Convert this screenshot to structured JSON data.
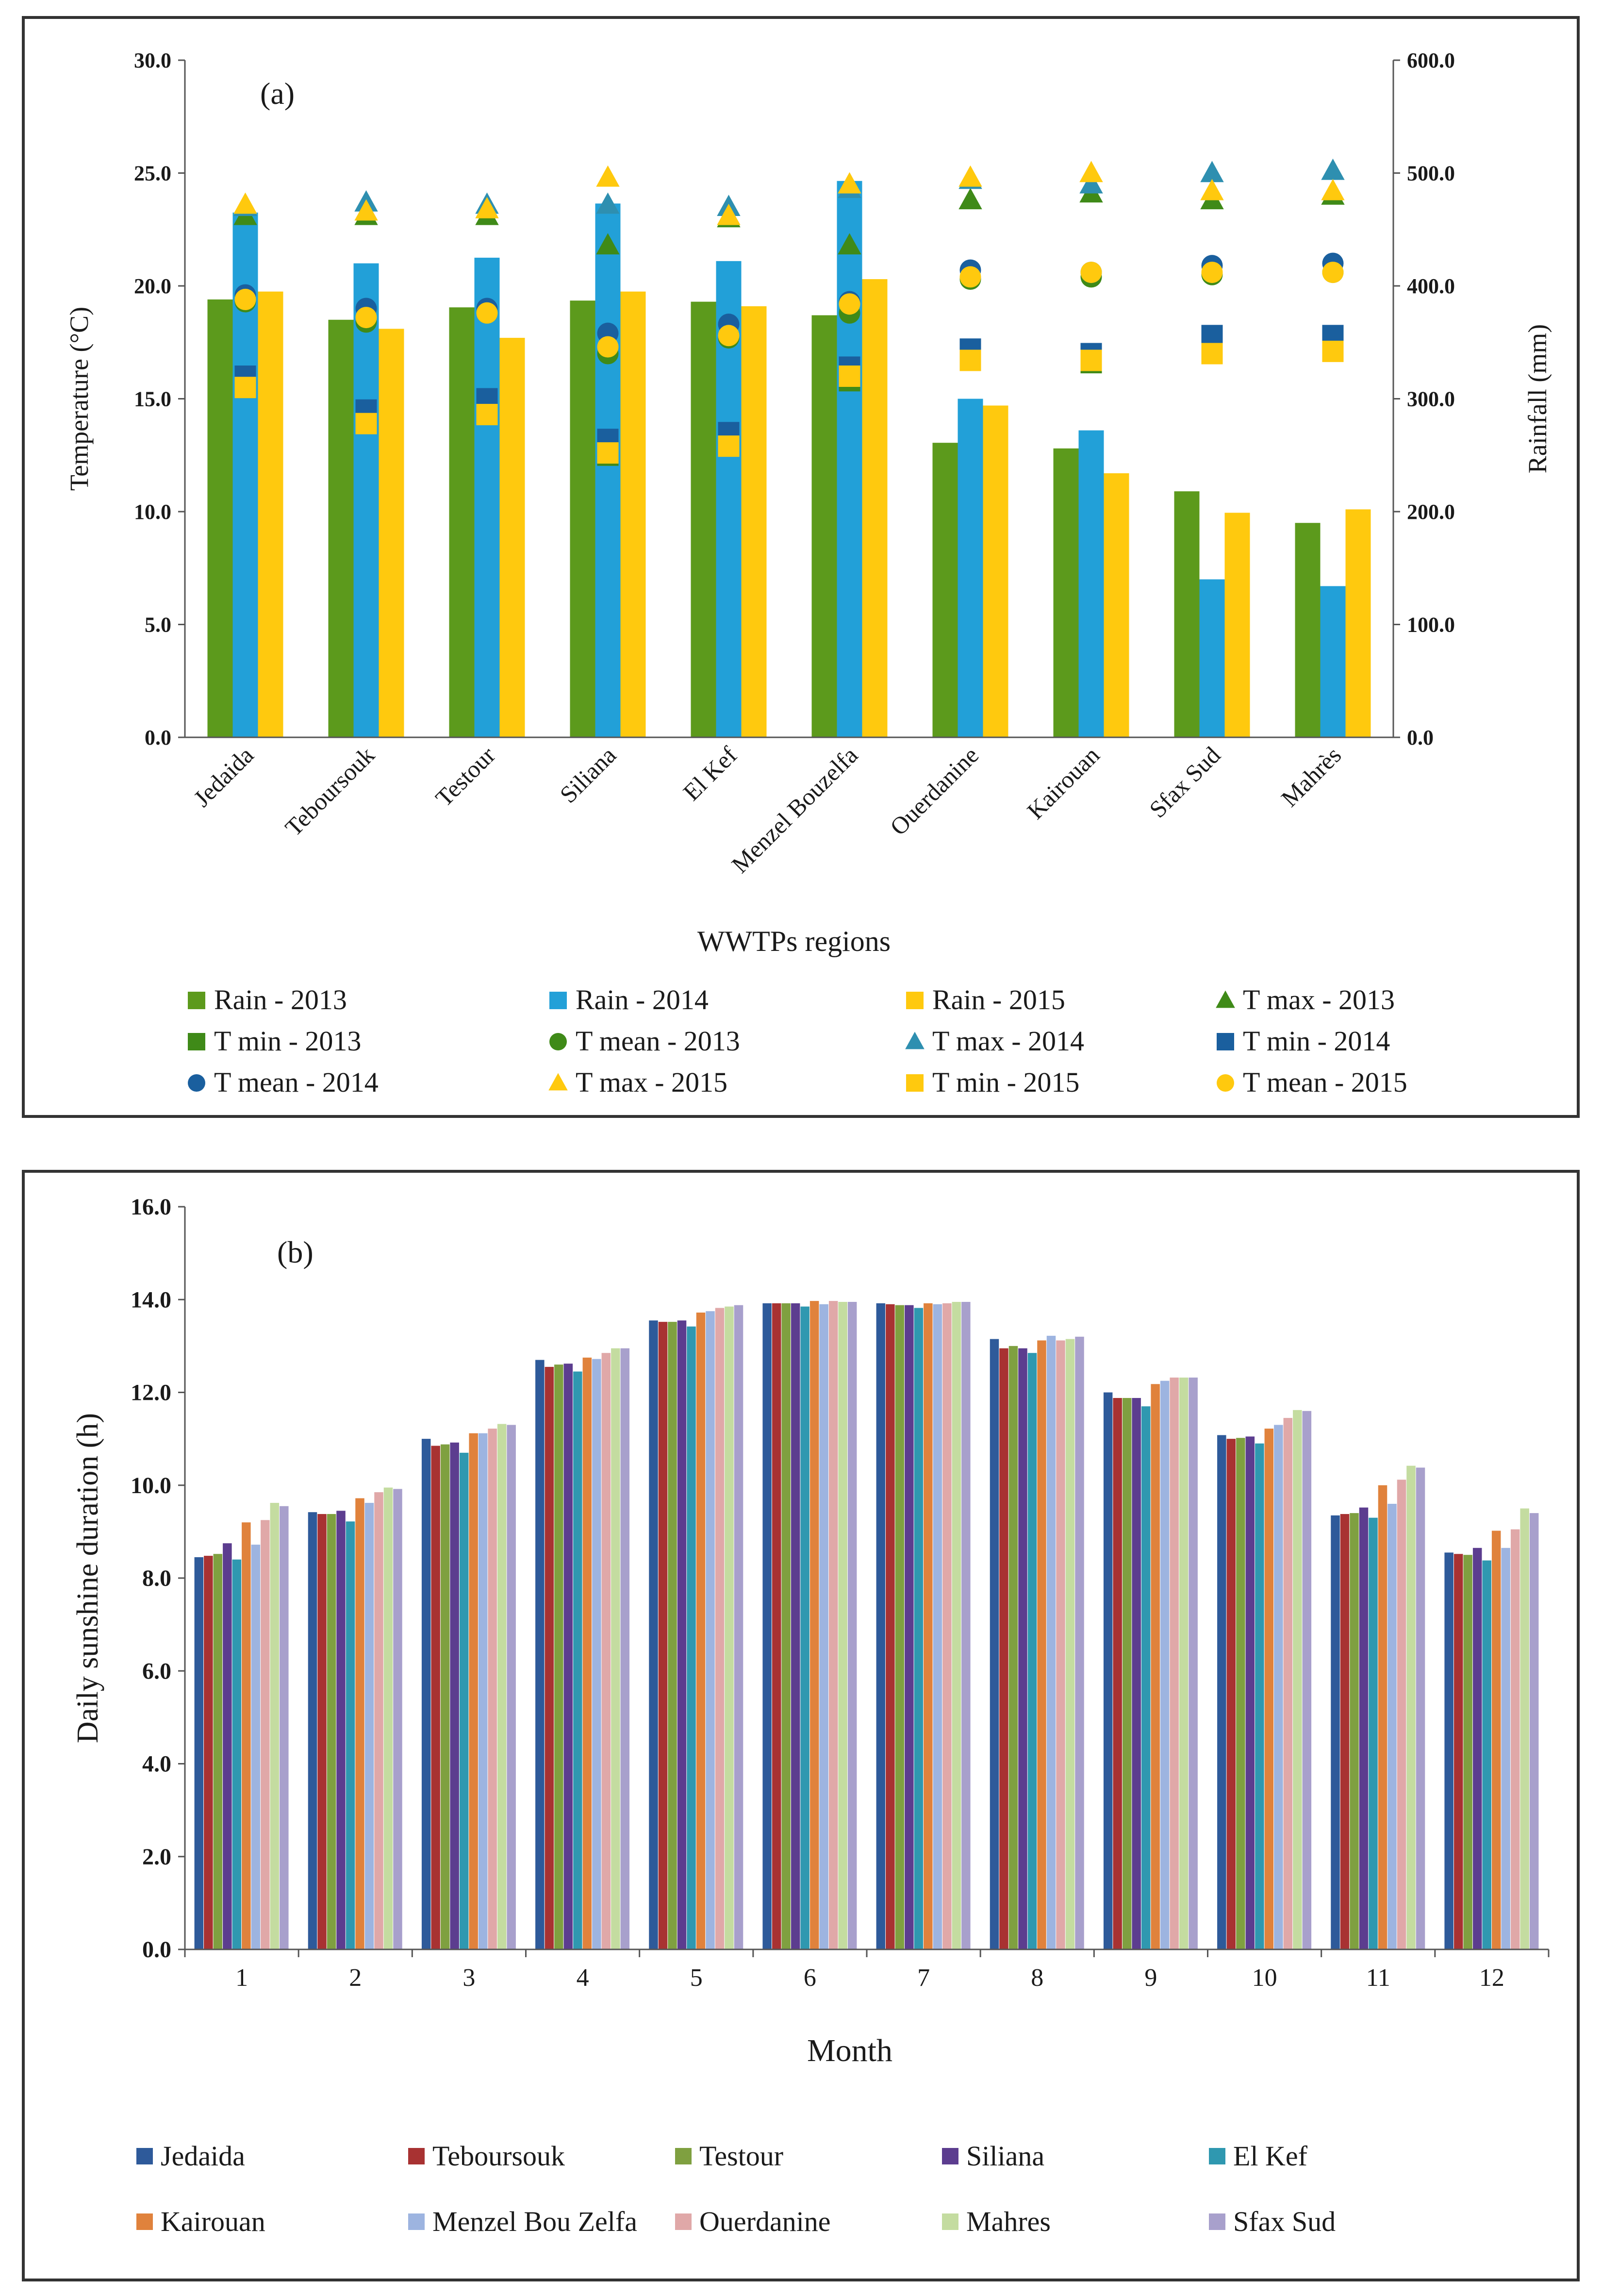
{
  "chart_data": [
    {
      "type": "bar",
      "panel_label": "(a)",
      "xlabel": "WWTPs regions",
      "ylabel": "Temperature (°C)",
      "ylabel_right": "Rainfall (mm)",
      "ylim": [
        0,
        30
      ],
      "ylim_right": [
        0,
        600
      ],
      "yticks": [
        "0.0",
        "5.0",
        "10.0",
        "15.0",
        "20.0",
        "25.0",
        "30.0"
      ],
      "yticks_right": [
        "0.0",
        "100.0",
        "200.0",
        "300.0",
        "400.0",
        "500.0",
        "600.0"
      ],
      "categories": [
        "Jedaida",
        "Teboursouk",
        "Testour",
        "Siliana",
        "El Kef",
        "Menzel Bouzelfa",
        "Ouerdanine",
        "Kairouan",
        "Sfax Sud",
        "Mahrès"
      ],
      "bar_series": [
        {
          "name": "Rain - 2013",
          "color": "#5c9a1c",
          "axis": "right",
          "values": [
            388,
            370,
            381,
            387,
            386,
            374,
            261,
            256,
            218,
            190
          ]
        },
        {
          "name": "Rain - 2014",
          "color": "#22a0d8",
          "axis": "right",
          "values": [
            465,
            420,
            425,
            473,
            422,
            493,
            300,
            272,
            140,
            134
          ]
        },
        {
          "name": "Rain - 2015",
          "color": "#ffc90e",
          "axis": "right",
          "values": [
            395,
            362,
            354,
            395,
            382,
            406,
            294,
            234,
            199,
            202
          ]
        }
      ],
      "marker_series": [
        {
          "name": "T max - 2013",
          "color": "#3f8a18",
          "marker": "triangle",
          "values": [
            23.1,
            23.1,
            23.1,
            21.8,
            23.0,
            21.8,
            23.8,
            24.1,
            23.8,
            24.0
          ]
        },
        {
          "name": "T min - 2013",
          "color": "#3f8a18",
          "marker": "square",
          "values": [
            15.5,
            14.0,
            14.5,
            12.5,
            13.0,
            15.8,
            16.8,
            16.6,
            17.2,
            17.2
          ]
        },
        {
          "name": "T mean - 2013",
          "color": "#3f8a18",
          "marker": "circle",
          "values": [
            19.3,
            18.4,
            18.8,
            17.0,
            17.7,
            18.8,
            20.3,
            20.4,
            20.5,
            20.6
          ]
        },
        {
          "name": "T max - 2014",
          "color": "#2e8fb0",
          "marker": "triangle",
          "values": [
            23.5,
            23.7,
            23.6,
            23.6,
            23.5,
            24.3,
            24.7,
            24.5,
            25.0,
            25.1
          ]
        },
        {
          "name": "T min - 2014",
          "color": "#1a5f9e",
          "marker": "square",
          "values": [
            16.0,
            14.5,
            15.0,
            13.2,
            13.5,
            16.4,
            17.2,
            17.0,
            17.8,
            17.8
          ]
        },
        {
          "name": "T mean - 2014",
          "color": "#1a5f9e",
          "marker": "circle",
          "values": [
            19.6,
            19.0,
            19.0,
            17.9,
            18.3,
            19.3,
            20.7,
            20.6,
            20.9,
            21.0
          ]
        },
        {
          "name": "T max - 2015",
          "color": "#ffc90e",
          "marker": "triangle",
          "values": [
            23.6,
            23.3,
            23.4,
            24.8,
            23.1,
            24.5,
            24.8,
            25.0,
            24.2,
            24.2
          ]
        },
        {
          "name": "T min - 2015",
          "color": "#ffc90e",
          "marker": "square",
          "values": [
            15.5,
            13.9,
            14.3,
            12.6,
            12.9,
            16.0,
            16.7,
            16.7,
            17.0,
            17.1
          ]
        },
        {
          "name": "T mean - 2015",
          "color": "#ffc90e",
          "marker": "circle",
          "values": [
            19.4,
            18.6,
            18.8,
            17.3,
            17.8,
            19.2,
            20.4,
            20.6,
            20.6,
            20.6
          ]
        }
      ],
      "legend": [
        {
          "label": "Rain - 2013",
          "marker": "square",
          "color": "#5c9a1c"
        },
        {
          "label": "Rain - 2014",
          "marker": "square",
          "color": "#22a0d8"
        },
        {
          "label": "Rain - 2015",
          "marker": "square",
          "color": "#ffc90e"
        },
        {
          "label": "T max - 2013",
          "marker": "triangle",
          "color": "#3f8a18"
        },
        {
          "label": "T min - 2013",
          "marker": "square",
          "color": "#3f8a18"
        },
        {
          "label": "T mean - 2013",
          "marker": "circle",
          "color": "#3f8a18"
        },
        {
          "label": "T max - 2014",
          "marker": "triangle",
          "color": "#2e8fb0"
        },
        {
          "label": "T min - 2014",
          "marker": "square",
          "color": "#1a5f9e"
        },
        {
          "label": "T mean - 2014",
          "marker": "circle",
          "color": "#1a5f9e"
        },
        {
          "label": "T max - 2015",
          "marker": "triangle",
          "color": "#ffc90e"
        },
        {
          "label": "T min - 2015",
          "marker": "square",
          "color": "#ffc90e"
        },
        {
          "label": "T mean - 2015",
          "marker": "circle",
          "color": "#ffc90e"
        }
      ],
      "legend_position": "bottom",
      "grid": false
    },
    {
      "type": "bar",
      "panel_label": "(b)",
      "xlabel": "Month",
      "ylabel": "Daily sunshine duration (h)",
      "ylim": [
        0,
        16
      ],
      "yticks": [
        "0.0",
        "2.0",
        "4.0",
        "6.0",
        "8.0",
        "10.0",
        "12.0",
        "14.0",
        "16.0"
      ],
      "categories": [
        "1",
        "2",
        "3",
        "4",
        "5",
        "6",
        "7",
        "8",
        "9",
        "10",
        "11",
        "12"
      ],
      "series": [
        {
          "name": "Jedaida",
          "color": "#2e5a9a",
          "values": [
            8.45,
            9.42,
            11.0,
            12.7,
            13.55,
            13.92,
            13.92,
            13.15,
            12.0,
            11.08,
            9.35,
            8.55
          ]
        },
        {
          "name": "Teboursouk",
          "color": "#a83232",
          "values": [
            8.48,
            9.38,
            10.85,
            12.55,
            13.52,
            13.92,
            13.9,
            12.95,
            11.88,
            11.0,
            9.38,
            8.52
          ]
        },
        {
          "name": "Testour",
          "color": "#7fa040",
          "values": [
            8.52,
            9.38,
            10.88,
            12.6,
            13.52,
            13.92,
            13.88,
            13.0,
            11.88,
            11.02,
            9.4,
            8.5
          ]
        },
        {
          "name": "Siliana",
          "color": "#5c3d8f",
          "values": [
            8.75,
            9.45,
            10.92,
            12.62,
            13.55,
            13.92,
            13.88,
            12.95,
            11.88,
            11.05,
            9.52,
            8.65
          ]
        },
        {
          "name": "El Kef",
          "color": "#2f98b0",
          "values": [
            8.4,
            9.22,
            10.7,
            12.45,
            13.42,
            13.85,
            13.82,
            12.85,
            11.7,
            10.9,
            9.3,
            8.38
          ]
        },
        {
          "name": "Kairouan",
          "color": "#e0823c",
          "values": [
            9.2,
            9.72,
            11.12,
            12.75,
            13.72,
            13.97,
            13.92,
            13.12,
            12.18,
            11.22,
            10.0,
            9.02
          ]
        },
        {
          "name": "Menzel Bou Zelfa",
          "color": "#9db4e0",
          "values": [
            8.72,
            9.62,
            11.12,
            12.72,
            13.75,
            13.9,
            13.9,
            13.22,
            12.25,
            11.3,
            9.6,
            8.65
          ]
        },
        {
          "name": "Ouerdanine",
          "color": "#e0a8a8",
          "values": [
            9.25,
            9.85,
            11.22,
            12.85,
            13.82,
            13.97,
            13.92,
            13.12,
            12.32,
            11.45,
            10.12,
            9.05
          ]
        },
        {
          "name": "Mahres",
          "color": "#c4dca0",
          "values": [
            9.62,
            9.95,
            11.32,
            12.95,
            13.85,
            13.95,
            13.95,
            13.15,
            12.32,
            11.62,
            10.42,
            9.5
          ]
        },
        {
          "name": "Sfax Sud",
          "color": "#a8a0cc",
          "values": [
            9.55,
            9.92,
            11.3,
            12.95,
            13.88,
            13.95,
            13.95,
            13.2,
            12.32,
            11.6,
            10.38,
            9.4
          ]
        }
      ],
      "legend_position": "bottom",
      "grid": false
    }
  ]
}
